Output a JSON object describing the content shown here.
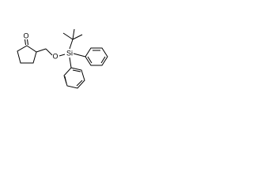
{
  "atoms": [
    {
      "label": "O"
    },
    {
      "label": "O"
    },
    {
      "label": "Si"
    }
  ]
}
